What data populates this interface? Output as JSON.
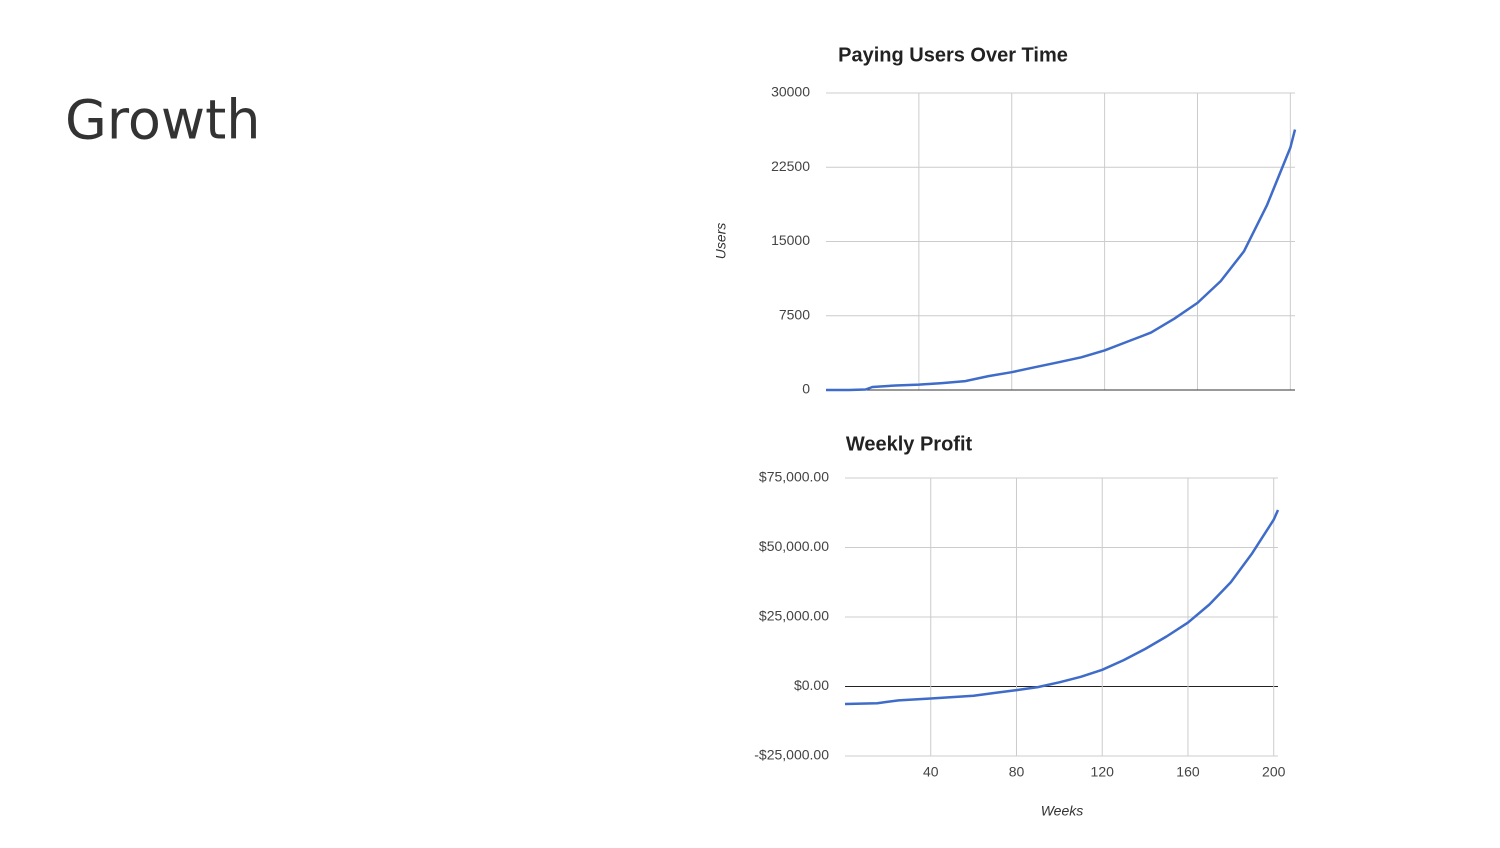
{
  "title": "Growth",
  "chart_data": [
    {
      "type": "line",
      "title": "Paying Users Over Time",
      "y_label": "Users",
      "x": [
        0,
        10,
        17,
        20,
        30,
        40,
        50,
        60,
        70,
        80,
        90,
        100,
        110,
        120,
        130,
        140,
        150,
        160,
        170,
        180,
        190,
        200,
        202
      ],
      "series": [
        {
          "name": "Users",
          "color": "#3f6cc9",
          "values": [
            0,
            0,
            50,
            300,
            450,
            550,
            700,
            900,
            1400,
            1800,
            2300,
            2800,
            3300,
            4000,
            4900,
            5800,
            7200,
            8800,
            11000,
            14000,
            18700,
            24500,
            26300
          ]
        }
      ],
      "xlim": [
        0,
        202
      ],
      "ylim": [
        0,
        30000
      ],
      "yticks": [
        0,
        7500,
        15000,
        22500,
        30000
      ],
      "grid": true
    },
    {
      "type": "line",
      "title": "Weekly Profit",
      "x_label": "Weeks",
      "x": [
        0,
        15,
        20,
        25,
        40,
        60,
        70,
        80,
        90,
        100,
        110,
        120,
        130,
        140,
        150,
        160,
        170,
        180,
        190,
        200,
        202
      ],
      "series": [
        {
          "name": "Profit",
          "color": "#3f6cc9",
          "values": [
            -6300,
            -6000,
            -5500,
            -5000,
            -4300,
            -3300,
            -2300,
            -1300,
            -200,
            1500,
            3500,
            6000,
            9500,
            13500,
            18000,
            23000,
            29500,
            37500,
            48000,
            60000,
            63500
          ]
        }
      ],
      "xlim": [
        0,
        202
      ],
      "ylim": [
        -25000,
        75000
      ],
      "xticks": [
        40,
        80,
        120,
        160,
        200
      ],
      "yticks": [
        {
          "value": -25000,
          "label": "-$25,000.00"
        },
        {
          "value": 0,
          "label": "$0.00"
        },
        {
          "value": 25000,
          "label": "$25,000.00"
        },
        {
          "value": 50000,
          "label": "$50,000.00"
        },
        {
          "value": 75000,
          "label": "$75,000.00"
        }
      ],
      "grid": true
    }
  ]
}
